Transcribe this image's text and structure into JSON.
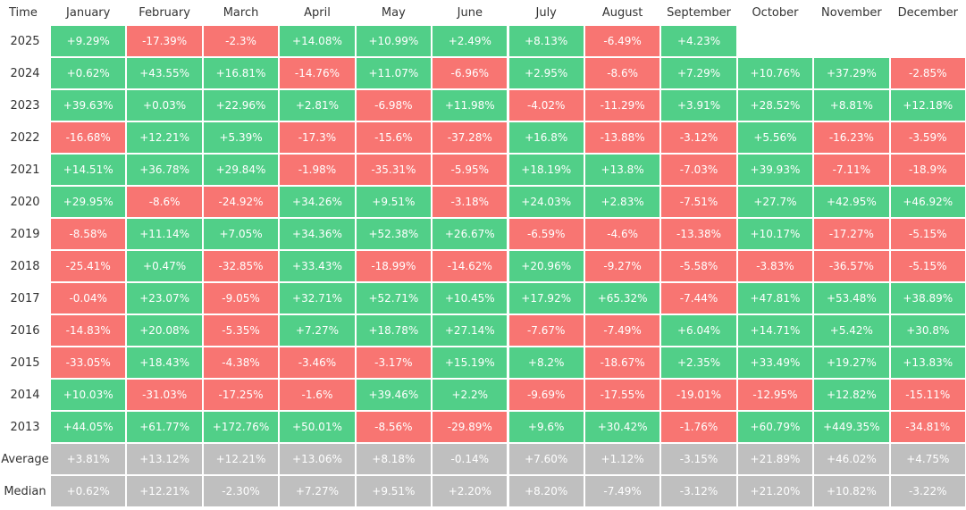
{
  "table": {
    "header": [
      "Time",
      "January",
      "February",
      "March",
      "April",
      "May",
      "June",
      "July",
      "August",
      "September",
      "October",
      "November",
      "December"
    ],
    "colors": {
      "up": "#51cf88",
      "down": "#f87572",
      "summary": "#bfbfbf"
    },
    "rows": [
      {
        "label": "2025",
        "cells": [
          "+9.29%",
          "-17.39%",
          "-2.3%",
          "+14.08%",
          "+10.99%",
          "+2.49%",
          "+8.13%",
          "-6.49%",
          "+4.23%"
        ]
      },
      {
        "label": "2024",
        "cells": [
          "+0.62%",
          "+43.55%",
          "+16.81%",
          "-14.76%",
          "+11.07%",
          "-6.96%",
          "+2.95%",
          "-8.6%",
          "+7.29%",
          "+10.76%",
          "+37.29%",
          "-2.85%"
        ]
      },
      {
        "label": "2023",
        "cells": [
          "+39.63%",
          "+0.03%",
          "+22.96%",
          "+2.81%",
          "-6.98%",
          "+11.98%",
          "-4.02%",
          "-11.29%",
          "+3.91%",
          "+28.52%",
          "+8.81%",
          "+12.18%"
        ]
      },
      {
        "label": "2022",
        "cells": [
          "-16.68%",
          "+12.21%",
          "+5.39%",
          "-17.3%",
          "-15.6%",
          "-37.28%",
          "+16.8%",
          "-13.88%",
          "-3.12%",
          "+5.56%",
          "-16.23%",
          "-3.59%"
        ]
      },
      {
        "label": "2021",
        "cells": [
          "+14.51%",
          "+36.78%",
          "+29.84%",
          "-1.98%",
          "-35.31%",
          "-5.95%",
          "+18.19%",
          "+13.8%",
          "-7.03%",
          "+39.93%",
          "-7.11%",
          "-18.9%"
        ]
      },
      {
        "label": "2020",
        "cells": [
          "+29.95%",
          "-8.6%",
          "-24.92%",
          "+34.26%",
          "+9.51%",
          "-3.18%",
          "+24.03%",
          "+2.83%",
          "-7.51%",
          "+27.7%",
          "+42.95%",
          "+46.92%"
        ]
      },
      {
        "label": "2019",
        "cells": [
          "-8.58%",
          "+11.14%",
          "+7.05%",
          "+34.36%",
          "+52.38%",
          "+26.67%",
          "-6.59%",
          "-4.6%",
          "-13.38%",
          "+10.17%",
          "-17.27%",
          "-5.15%"
        ]
      },
      {
        "label": "2018",
        "cells": [
          "-25.41%",
          "+0.47%",
          "-32.85%",
          "+33.43%",
          "-18.99%",
          "-14.62%",
          "+20.96%",
          "-9.27%",
          "-5.58%",
          "-3.83%",
          "-36.57%",
          "-5.15%"
        ]
      },
      {
        "label": "2017",
        "cells": [
          "-0.04%",
          "+23.07%",
          "-9.05%",
          "+32.71%",
          "+52.71%",
          "+10.45%",
          "+17.92%",
          "+65.32%",
          "-7.44%",
          "+47.81%",
          "+53.48%",
          "+38.89%"
        ]
      },
      {
        "label": "2016",
        "cells": [
          "-14.83%",
          "+20.08%",
          "-5.35%",
          "+7.27%",
          "+18.78%",
          "+27.14%",
          "-7.67%",
          "-7.49%",
          "+6.04%",
          "+14.71%",
          "+5.42%",
          "+30.8%"
        ]
      },
      {
        "label": "2015",
        "cells": [
          "-33.05%",
          "+18.43%",
          "-4.38%",
          "-3.46%",
          "-3.17%",
          "+15.19%",
          "+8.2%",
          "-18.67%",
          "+2.35%",
          "+33.49%",
          "+19.27%",
          "+13.83%"
        ]
      },
      {
        "label": "2014",
        "cells": [
          "+10.03%",
          "-31.03%",
          "-17.25%",
          "-1.6%",
          "+39.46%",
          "+2.2%",
          "-9.69%",
          "-17.55%",
          "-19.01%",
          "-12.95%",
          "+12.82%",
          "-15.11%"
        ]
      },
      {
        "label": "2013",
        "cells": [
          "+44.05%",
          "+61.77%",
          "+172.76%",
          "+50.01%",
          "-8.56%",
          "-29.89%",
          "+9.6%",
          "+30.42%",
          "-1.76%",
          "+60.79%",
          "+449.35%",
          "-34.81%"
        ]
      }
    ],
    "summary": [
      {
        "label": "Average",
        "cells": [
          "+3.81%",
          "+13.12%",
          "+12.21%",
          "+13.06%",
          "+8.18%",
          "-0.14%",
          "+7.60%",
          "+1.12%",
          "-3.15%",
          "+21.89%",
          "+46.02%",
          "+4.75%"
        ]
      },
      {
        "label": "Median",
        "cells": [
          "+0.62%",
          "+12.21%",
          "-2.30%",
          "+7.27%",
          "+9.51%",
          "+2.20%",
          "+8.20%",
          "-7.49%",
          "-3.12%",
          "+21.20%",
          "+10.82%",
          "-3.22%"
        ]
      }
    ]
  }
}
